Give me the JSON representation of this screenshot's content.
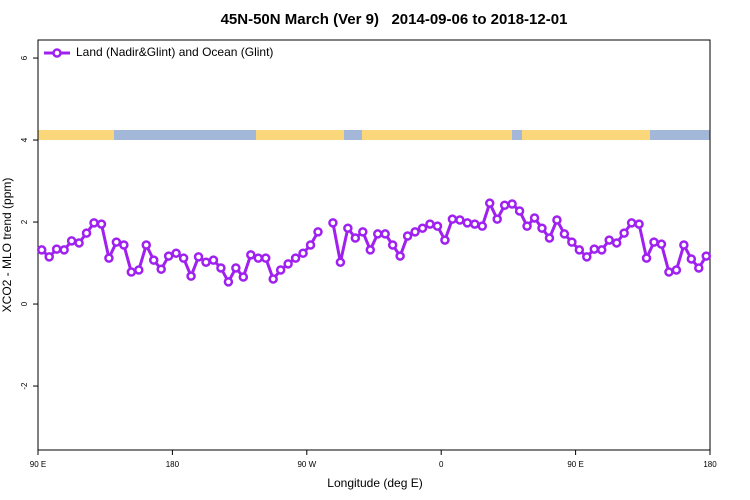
{
  "chart_data": {
    "type": "line",
    "title": "45N-50N March (Ver 9)   2014-09-06 to 2018-12-01",
    "x_label": "Longitude (deg E)",
    "y_label": "XCO2 - MLO trend (ppm)",
    "xlim": [
      90,
      540
    ],
    "xticks": [
      {
        "value": 90,
        "label": "90 E"
      },
      {
        "value": 180,
        "label": "180"
      },
      {
        "value": 270,
        "label": "90 W"
      },
      {
        "value": 360,
        "label": "0"
      },
      {
        "value": 450,
        "label": "90 E"
      },
      {
        "value": 540,
        "label": "180"
      }
    ],
    "ylim": [
      -3.56,
      6.44
    ],
    "yticks": [
      -2,
      0,
      2,
      4,
      6
    ],
    "legend": "top-left",
    "series": [
      {
        "name": "Land (Nadir&Glint) and Ocean (Glint)",
        "color": "#a020f0",
        "x": [
          92.5,
          97.5,
          102.5,
          107.5,
          112.5,
          117.5,
          122.5,
          127.5,
          132.5,
          137.5,
          142.5,
          147.5,
          152.5,
          157.5,
          162.5,
          167.5,
          172.5,
          177.5,
          182.5,
          187.5,
          192.5,
          197.5,
          202.5,
          207.5,
          212.5,
          217.5,
          222.5,
          227.5,
          232.5,
          237.5,
          242.5,
          247.5,
          252.5,
          257.5,
          262.5,
          267.5,
          272.5,
          277.5,
          282.5,
          287.5,
          292.5,
          297.5,
          302.5,
          307.5,
          312.5,
          317.5,
          322.5,
          327.5,
          332.5,
          337.5,
          342.5,
          347.5,
          352.5,
          357.5,
          362.5,
          367.5,
          372.5,
          377.5,
          382.5,
          387.5,
          392.5,
          397.5,
          402.5,
          407.5,
          412.5,
          417.5,
          422.5,
          427.5,
          432.5,
          437.5,
          442.5,
          447.5,
          452.5,
          457.5,
          462.5,
          467.5,
          472.5,
          477.5,
          482.5,
          487.5,
          492.5,
          497.5,
          502.5,
          507.5,
          512.5,
          517.5,
          522.5,
          527.5,
          532.5,
          537.5
        ],
        "values": [
          1.32,
          1.15,
          1.34,
          1.32,
          1.54,
          1.49,
          1.73,
          1.98,
          1.95,
          1.12,
          1.51,
          1.44,
          0.78,
          0.83,
          1.44,
          1.07,
          0.85,
          1.17,
          1.24,
          1.12,
          0.68,
          1.15,
          1.02,
          1.07,
          0.88,
          0.54,
          0.88,
          0.66,
          1.2,
          1.12,
          1.12,
          0.61,
          0.83,
          0.98,
          1.12,
          1.24,
          1.44,
          1.76,
          null,
          1.98,
          1.02,
          1.85,
          1.61,
          1.76,
          1.32,
          1.71,
          1.71,
          1.44,
          1.17,
          1.66,
          1.76,
          1.85,
          1.95,
          1.9,
          1.56,
          2.07,
          2.05,
          1.98,
          1.95,
          1.9,
          2.46,
          2.07,
          2.41,
          2.44,
          2.27,
          1.9,
          2.1,
          1.85,
          1.61,
          2.05,
          1.71,
          1.51,
          1.32,
          1.15,
          1.34,
          1.32,
          1.56,
          1.49,
          1.73,
          1.98,
          1.95,
          1.12,
          1.51,
          1.46,
          0.78,
          0.83,
          1.44,
          1.1,
          0.88,
          1.17
        ]
      }
    ]
  }
}
